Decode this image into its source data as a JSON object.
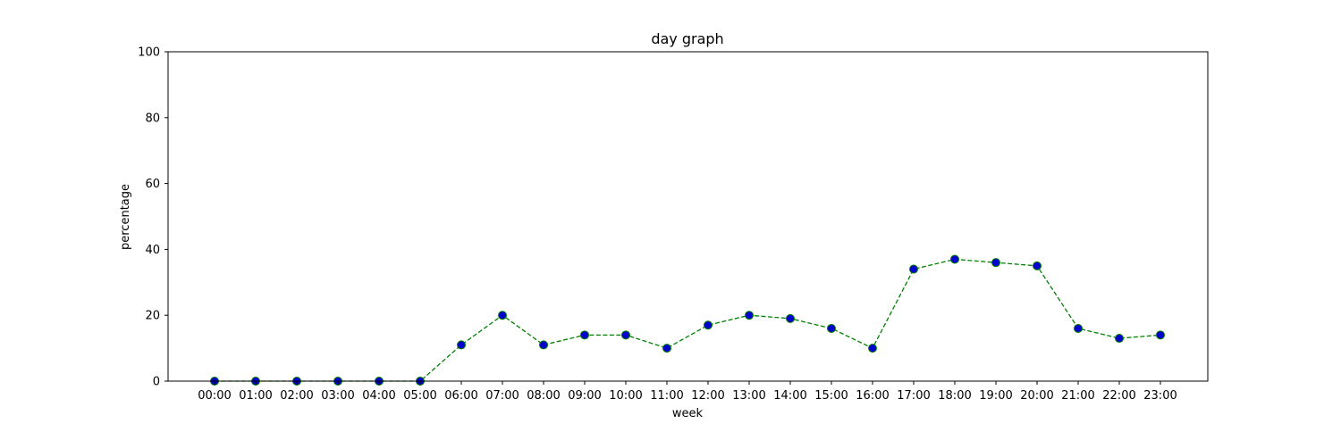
{
  "chart_data": {
    "type": "line",
    "title": "day graph",
    "xlabel": "week",
    "ylabel": "percentage",
    "ylim": [
      0,
      100
    ],
    "y_ticks": [
      0,
      20,
      40,
      60,
      80,
      100
    ],
    "grid": false,
    "categories": [
      "00:00",
      "01:00",
      "02:00",
      "03:00",
      "04:00",
      "05:00",
      "06:00",
      "07:00",
      "08:00",
      "09:00",
      "10:00",
      "11:00",
      "12:00",
      "13:00",
      "14:00",
      "15:00",
      "16:00",
      "17:00",
      "18:00",
      "19:00",
      "20:00",
      "21:00",
      "22:00",
      "23:00"
    ],
    "series": [
      {
        "values": [
          0,
          0,
          0,
          0,
          0,
          0,
          11,
          20,
          11,
          14,
          14,
          10,
          17,
          20,
          19,
          16,
          10,
          34,
          37,
          36,
          35,
          16,
          13,
          14
        ],
        "line_color": "#008000",
        "line_style": "dashed",
        "marker": "circle",
        "marker_fill": "#0000cc",
        "marker_edge": "#008000"
      }
    ]
  }
}
